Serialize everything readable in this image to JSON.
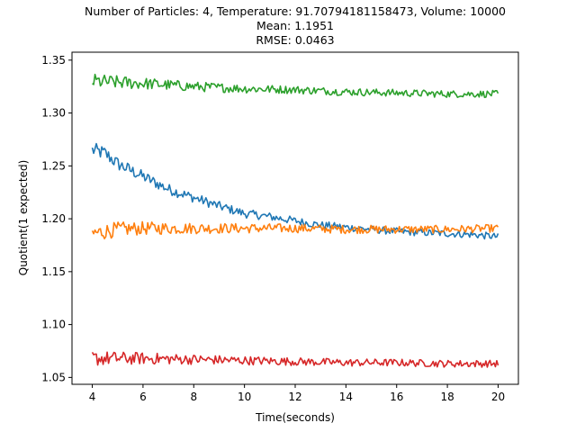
{
  "chart_data": {
    "type": "line",
    "title_lines": [
      "Number of Particles: 4, Temperature: 91.70794181158473, Volume: 10000",
      "Mean: 1.1951",
      "RMSE: 0.0463"
    ],
    "xlabel": "Time(seconds)",
    "ylabel": "Quotient(1 expected)",
    "xlim": [
      3.2,
      20.8
    ],
    "ylim": [
      1.0435,
      1.3575
    ],
    "xticks": [
      4,
      6,
      8,
      10,
      12,
      14,
      16,
      18,
      20
    ],
    "xtick_labels": [
      "4",
      "6",
      "8",
      "10",
      "12",
      "14",
      "16",
      "18",
      "20"
    ],
    "yticks": [
      1.05,
      1.1,
      1.15,
      1.2,
      1.25,
      1.3,
      1.35
    ],
    "ytick_labels": [
      "1.05",
      "1.10",
      "1.15",
      "1.20",
      "1.25",
      "1.30",
      "1.35"
    ],
    "grid": false,
    "legend": "none",
    "series": [
      {
        "color": "#1f77b4",
        "x": [
          4,
          4.5,
          5,
          6,
          7,
          8,
          9,
          10,
          11,
          12,
          13,
          14,
          15,
          16,
          17,
          18,
          19,
          20
        ],
        "values": [
          1.265,
          1.262,
          1.252,
          1.24,
          1.228,
          1.22,
          1.212,
          1.205,
          1.202,
          1.198,
          1.194,
          1.192,
          1.19,
          1.188,
          1.187,
          1.186,
          1.185,
          1.183
        ],
        "noise": 0.0045
      },
      {
        "color": "#ff7f0e",
        "x": [
          4,
          5,
          6,
          8,
          10,
          12,
          14,
          16,
          18,
          20
        ],
        "values": [
          1.186,
          1.19,
          1.191,
          1.191,
          1.191,
          1.191,
          1.19,
          1.19,
          1.19,
          1.191
        ],
        "noise": 0.005
      },
      {
        "color": "#2ca02c",
        "x": [
          4,
          6,
          8,
          10,
          12,
          14,
          16,
          18,
          20
        ],
        "values": [
          1.33,
          1.328,
          1.325,
          1.323,
          1.322,
          1.32,
          1.319,
          1.318,
          1.318
        ],
        "noise": 0.0045
      },
      {
        "color": "#d62728",
        "x": [
          4,
          6,
          8,
          10,
          12,
          14,
          16,
          18,
          20
        ],
        "values": [
          1.068,
          1.068,
          1.067,
          1.066,
          1.065,
          1.064,
          1.064,
          1.063,
          1.063
        ],
        "noise": 0.0045
      }
    ]
  }
}
